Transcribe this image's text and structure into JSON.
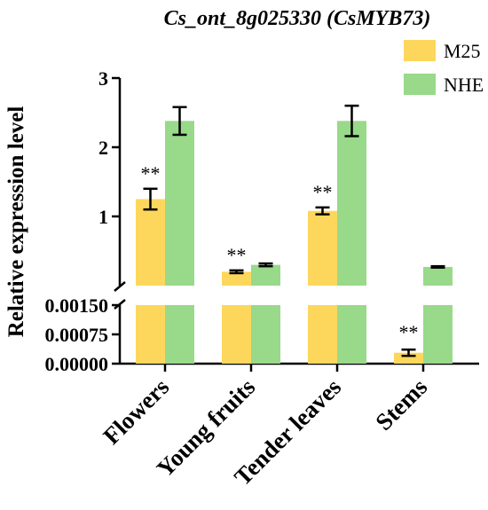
{
  "chart_data": {
    "type": "bar",
    "title": "Cs_ont_8g025330 (CsMYB73)",
    "ylabel": "Relative expression level",
    "xlabel": "",
    "categories": [
      "Flowers",
      "Young fruits",
      "Tender leaves",
      "Stems"
    ],
    "series": [
      {
        "name": "M25",
        "color": "#FDD75C",
        "values": [
          1.25,
          0.2,
          1.08,
          0.00028
        ],
        "errors": [
          0.15,
          0.02,
          0.05,
          8e-05
        ],
        "significance": [
          "**",
          "**",
          "**",
          "**"
        ]
      },
      {
        "name": "NHE",
        "color": "#98D98A",
        "values": [
          2.38,
          0.3,
          2.38,
          0.27
        ],
        "errors": [
          0.2,
          0.02,
          0.22,
          0.01
        ],
        "significance": [
          "",
          "",
          "",
          ""
        ]
      }
    ],
    "y_axis_broken": true,
    "y_upper_segment": {
      "ylim": [
        0,
        3
      ],
      "ticks": [
        "1",
        "2",
        "3"
      ],
      "tick_values": [
        1,
        2,
        3
      ]
    },
    "y_lower_segment": {
      "ylim": [
        0,
        0.0015
      ],
      "ticks": [
        "0.00000",
        "0.00075",
        "0.00150"
      ],
      "tick_values": [
        0,
        0.00075,
        0.0015
      ]
    },
    "legend_position": "top-right",
    "grid": false
  }
}
